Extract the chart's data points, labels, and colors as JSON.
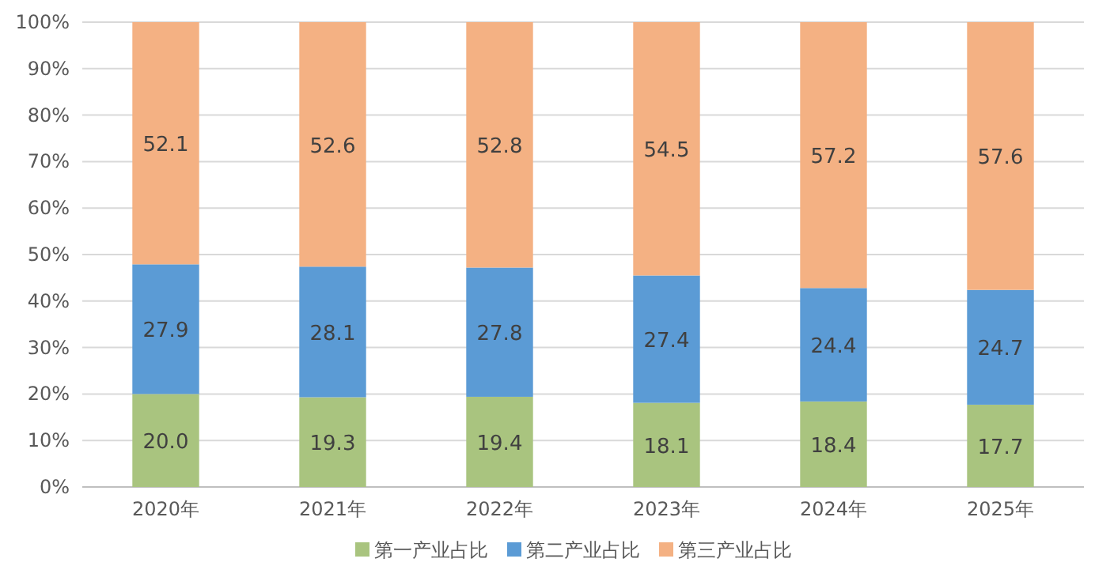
{
  "chart_data": {
    "type": "bar",
    "stacked": true,
    "categories": [
      "2020年",
      "2021年",
      "2022年",
      "2023年",
      "2024年",
      "2025年"
    ],
    "series": [
      {
        "name": "第一产业占比",
        "color": "#a9c47f",
        "values": [
          20.0,
          19.3,
          19.4,
          18.1,
          18.4,
          17.7
        ],
        "value_labels": [
          "20.0",
          "19.3",
          "19.4",
          "18.1",
          "18.4",
          "17.7"
        ]
      },
      {
        "name": "第二产业占比",
        "color": "#5b9bd5",
        "values": [
          27.9,
          28.1,
          27.8,
          27.4,
          24.4,
          24.7
        ],
        "value_labels": [
          "27.9",
          "28.1",
          "27.8",
          "27.4",
          "24.4",
          "24.7"
        ]
      },
      {
        "name": "第三产业占比",
        "color": "#f4b183",
        "values": [
          52.1,
          52.6,
          52.8,
          54.5,
          57.2,
          57.6
        ],
        "value_labels": [
          "52.1",
          "52.6",
          "52.8",
          "54.5",
          "57.2",
          "57.6"
        ]
      }
    ],
    "ylim": [
      0,
      100
    ],
    "yticks": [
      {
        "value": 0,
        "label": "0%"
      },
      {
        "value": 10,
        "label": "10%"
      },
      {
        "value": 20,
        "label": "20%"
      },
      {
        "value": 30,
        "label": "30%"
      },
      {
        "value": 40,
        "label": "40%"
      },
      {
        "value": 50,
        "label": "50%"
      },
      {
        "value": 60,
        "label": "60%"
      },
      {
        "value": 70,
        "label": "70%"
      },
      {
        "value": 80,
        "label": "80%"
      },
      {
        "value": 90,
        "label": "90%"
      },
      {
        "value": 100,
        "label": "100%"
      }
    ],
    "grid": "y",
    "legend": "bottom"
  }
}
